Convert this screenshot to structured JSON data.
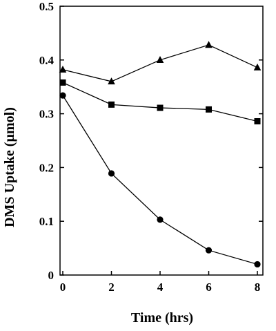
{
  "chart_data": {
    "type": "line",
    "xlabel": "Time (hrs)",
    "ylabel": "DMS Uptake (µmol)",
    "xlim": [
      0,
      8
    ],
    "ylim": [
      0,
      0.5
    ],
    "x_ticks": [
      0,
      2,
      4,
      6,
      8
    ],
    "y_ticks": [
      0,
      0.1,
      0.2,
      0.3,
      0.4,
      0.5
    ],
    "x_tick_labels": [
      "0",
      "2",
      "4",
      "6",
      "8"
    ],
    "y_tick_labels": [
      "0",
      "0.1",
      "0.2",
      "0.3",
      "0.4",
      "0.5"
    ],
    "grid": false,
    "series": [
      {
        "marker": "triangle",
        "color": "#000000",
        "x": [
          0,
          2,
          4,
          6,
          8
        ],
        "y": [
          0.382,
          0.36,
          0.4,
          0.428,
          0.386
        ]
      },
      {
        "marker": "square",
        "color": "#000000",
        "x": [
          0,
          2,
          4,
          6,
          8
        ],
        "y": [
          0.358,
          0.317,
          0.311,
          0.308,
          0.286
        ]
      },
      {
        "marker": "circle",
        "color": "#000000",
        "x": [
          0,
          2,
          4,
          6,
          8
        ],
        "y": [
          0.334,
          0.189,
          0.103,
          0.046,
          0.02
        ]
      }
    ]
  }
}
